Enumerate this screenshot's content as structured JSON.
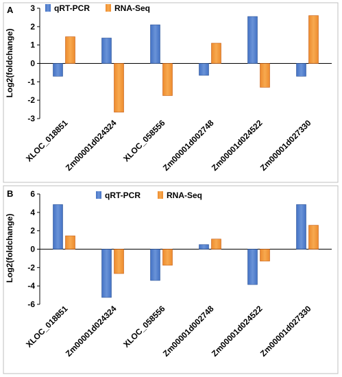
{
  "chart_data": [
    {
      "type": "bar",
      "panel_label": "A",
      "ylabel": "Log2(foldchange)",
      "ylim": [
        -3,
        3
      ],
      "yticks": [
        3,
        2,
        1,
        0,
        -1,
        -2,
        -3
      ],
      "legend_position": "top-left",
      "categories": [
        "XLOC_018851",
        "Zm00001d024324",
        "XLOC_058556",
        "Zm00001d002748",
        "Zm00001d024522",
        "Zm00001d027330"
      ],
      "series": [
        {
          "name": "qRT-PCR",
          "color": "#4472c4",
          "values": [
            -0.7,
            1.38,
            2.1,
            -0.65,
            2.55,
            -0.7
          ]
        },
        {
          "name": "RNA-Seq",
          "color": "#ed8b2e",
          "values": [
            1.45,
            -2.65,
            -1.75,
            1.1,
            -1.3,
            2.6
          ]
        }
      ]
    },
    {
      "type": "bar",
      "panel_label": "B",
      "ylabel": "Log2(foldchange)",
      "ylim": [
        -6,
        6
      ],
      "yticks": [
        6,
        4,
        2,
        0,
        -2,
        -4,
        -6
      ],
      "legend_position": "top-center",
      "categories": [
        "XLOC_018851",
        "Zm00001d024324",
        "XLOC_058556",
        "Zm00001d002748",
        "Zm00001d024522",
        "Zm00001d027330"
      ],
      "series": [
        {
          "name": "qRT-PCR",
          "color": "#4472c4",
          "values": [
            4.85,
            -5.25,
            -3.4,
            0.5,
            -3.85,
            4.85
          ]
        },
        {
          "name": "RNA-Seq",
          "color": "#ed8b2e",
          "values": [
            1.45,
            -2.65,
            -1.75,
            1.1,
            -1.3,
            2.6
          ]
        }
      ]
    }
  ]
}
